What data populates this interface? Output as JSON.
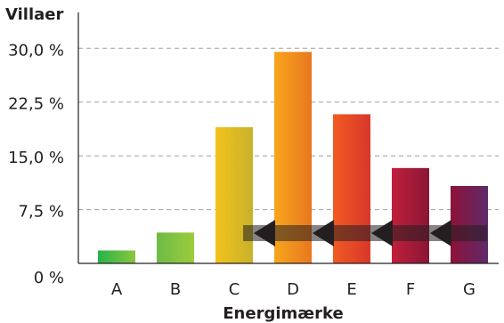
{
  "chart_data": {
    "type": "bar",
    "title": "",
    "ylabel": "Villaer",
    "xlabel": "Energimærke",
    "categories": [
      "A",
      "B",
      "C",
      "D",
      "E",
      "F",
      "G"
    ],
    "values": [
      1.8,
      4.3,
      19.0,
      29.5,
      20.8,
      13.3,
      10.8
    ],
    "ylim": [
      0,
      35
    ],
    "yticks": [
      0,
      7.5,
      15,
      22.5,
      30
    ],
    "ytick_labels": [
      "0 %",
      "7,5 %",
      "15,0 %",
      "22,5 %",
      "30,0 %"
    ],
    "grid": true,
    "legend": "none",
    "colors": {
      "A": [
        "#26b34a",
        "#8cc63f"
      ],
      "B": [
        "#6dbb45",
        "#9ccc3c"
      ],
      "C": [
        "#f2c21c",
        "#c8b12a"
      ],
      "D": [
        "#f7a51d",
        "#e8781e"
      ],
      "E": [
        "#f15a22",
        "#d8372a"
      ],
      "F": [
        "#c01f3a",
        "#8b1636"
      ],
      "G": [
        "#8e1238",
        "#5e2a6a"
      ]
    },
    "arrow_color": "#231f20"
  }
}
